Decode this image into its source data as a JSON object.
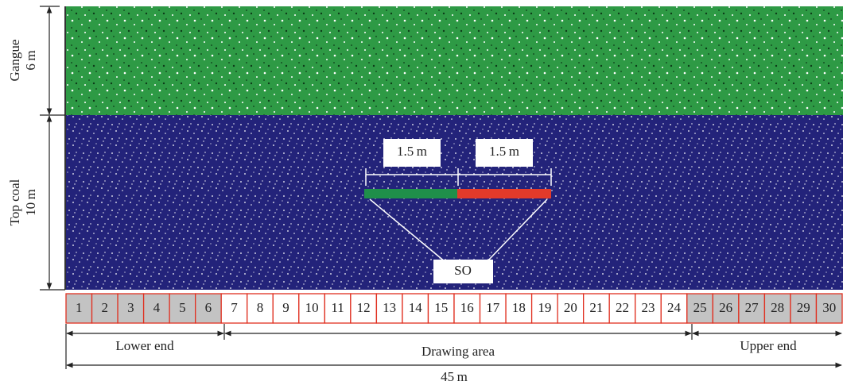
{
  "labels": {
    "gangue": "Gangue",
    "gangue_height": "6 m",
    "top_coal": "Top coal",
    "top_coal_height": "10 m",
    "left_length": "1.5 m",
    "right_length": "1.5 m",
    "so": "SO",
    "lower_end": "Lower end",
    "drawing_area": "Drawing area",
    "upper_end": "Upper end",
    "total_length": "45 m"
  },
  "cells": [
    "1",
    "2",
    "3",
    "4",
    "5",
    "6",
    "7",
    "8",
    "9",
    "10",
    "11",
    "12",
    "13",
    "14",
    "15",
    "16",
    "17",
    "18",
    "19",
    "20",
    "21",
    "22",
    "23",
    "24",
    "25",
    "26",
    "27",
    "28",
    "29",
    "30"
  ]
}
